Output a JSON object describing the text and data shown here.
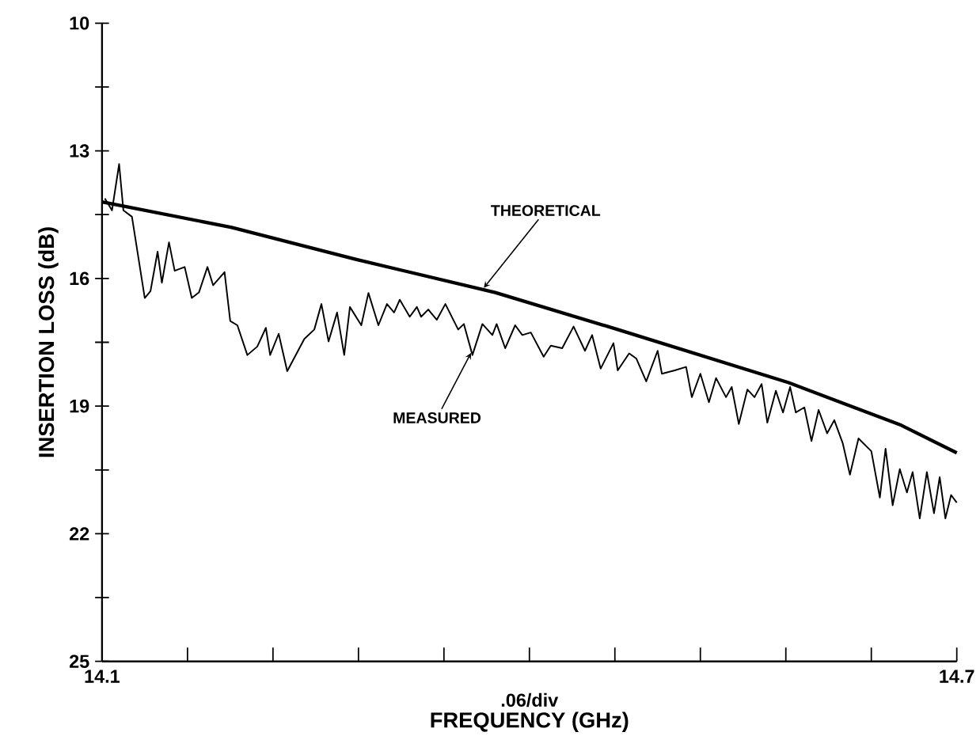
{
  "chart_data": {
    "type": "line",
    "xlabel": "FREQUENCY (GHz)",
    "ylabel": "INSERTION LOSS (dB)",
    "xlim": [
      14.1,
      14.7
    ],
    "ylim": [
      25,
      10
    ],
    "xticks": [
      {
        "value": 14.1,
        "label": "14.1"
      },
      {
        "value": 14.16,
        "label": null
      },
      {
        "value": 14.22,
        "label": null
      },
      {
        "value": 14.28,
        "label": null
      },
      {
        "value": 14.34,
        "label": null
      },
      {
        "value": 14.4,
        "label": null
      },
      {
        "value": 14.46,
        "label": null
      },
      {
        "value": 14.52,
        "label": null
      },
      {
        "value": 14.58,
        "label": null
      },
      {
        "value": 14.64,
        "label": null
      },
      {
        "value": 14.7,
        "label": "14.7"
      }
    ],
    "yticks": [
      10,
      {
        "value": 11.5,
        "label": null
      },
      13,
      {
        "value": 14.5,
        "label": null
      },
      16,
      {
        "value": 17.5,
        "label": null
      },
      19,
      {
        "value": 20.5,
        "label": null
      },
      22,
      {
        "value": 23.5,
        "label": null
      },
      25
    ],
    "series": [
      {
        "color": "#000000",
        "x": [
          14.1,
          14.191,
          14.278,
          14.376,
          14.462,
          14.582,
          14.661,
          14.7
        ],
        "values": [
          14.2,
          14.8,
          15.55,
          16.33,
          17.2,
          18.45,
          19.45,
          20.1
        ]
      },
      {
        "color": "#000000",
        "x": [
          14.102,
          14.107,
          14.112,
          14.115,
          14.121,
          14.13,
          14.134,
          14.139,
          14.142,
          14.147,
          14.151,
          14.158,
          14.163,
          14.168,
          14.174,
          14.178,
          14.186,
          14.19,
          14.195,
          14.202,
          14.209,
          14.215,
          14.218,
          14.224,
          14.23,
          14.242,
          14.249,
          14.254,
          14.259,
          14.265,
          14.27,
          14.274,
          14.282,
          14.287,
          14.294,
          14.3,
          14.305,
          14.309,
          14.316,
          14.321,
          14.324,
          14.329,
          14.335,
          14.341,
          14.35,
          14.354,
          14.36,
          14.367,
          14.374,
          14.377,
          14.383,
          14.39,
          14.395,
          14.401,
          14.41,
          14.415,
          14.423,
          14.431,
          14.439,
          14.444,
          14.45,
          14.459,
          14.462,
          14.47,
          14.475,
          14.482,
          14.49,
          14.493,
          14.502,
          14.51,
          14.514,
          14.52,
          14.526,
          14.531,
          14.538,
          14.542,
          14.547,
          14.553,
          14.558,
          14.563,
          14.567,
          14.573,
          14.578,
          14.583,
          14.587,
          14.593,
          14.598,
          14.603,
          14.609,
          14.614,
          14.62,
          14.625,
          14.631,
          14.64,
          14.646,
          14.65,
          14.655,
          14.66,
          14.665,
          14.669,
          14.674,
          14.679,
          14.684,
          14.688,
          14.692,
          14.696,
          14.7
        ],
        "values": [
          14.12,
          14.4,
          13.31,
          14.4,
          14.55,
          16.46,
          16.3,
          15.37,
          16.1,
          15.15,
          15.82,
          15.73,
          16.46,
          16.33,
          15.73,
          16.16,
          15.85,
          17.0,
          17.1,
          17.8,
          17.6,
          17.16,
          17.8,
          17.3,
          18.18,
          17.42,
          17.2,
          16.6,
          17.48,
          16.8,
          17.8,
          16.67,
          17.1,
          16.34,
          17.1,
          16.6,
          16.8,
          16.5,
          16.9,
          16.67,
          16.9,
          16.73,
          16.97,
          16.6,
          17.2,
          17.07,
          17.8,
          17.07,
          17.33,
          17.07,
          17.64,
          17.1,
          17.33,
          17.27,
          17.84,
          17.58,
          17.64,
          17.13,
          17.7,
          17.33,
          18.12,
          17.52,
          18.16,
          17.76,
          17.88,
          18.42,
          17.7,
          18.24,
          18.16,
          18.08,
          18.79,
          18.24,
          18.91,
          18.34,
          18.79,
          18.55,
          19.42,
          18.61,
          18.79,
          18.48,
          19.39,
          18.64,
          19.15,
          18.55,
          19.15,
          19.03,
          19.82,
          19.09,
          19.64,
          19.33,
          19.88,
          20.61,
          19.76,
          20.06,
          21.15,
          20.0,
          21.33,
          20.48,
          21.03,
          20.55,
          21.64,
          20.55,
          21.52,
          20.67,
          21.64,
          21.09,
          21.27
        ]
      }
    ],
    "annotations": [
      {
        "text": "THEORETICAL",
        "x": 14.368,
        "y": 16.22
      },
      {
        "text": "MEASURED",
        "x": 14.359,
        "y": 17.75
      },
      ".06/div"
    ]
  }
}
